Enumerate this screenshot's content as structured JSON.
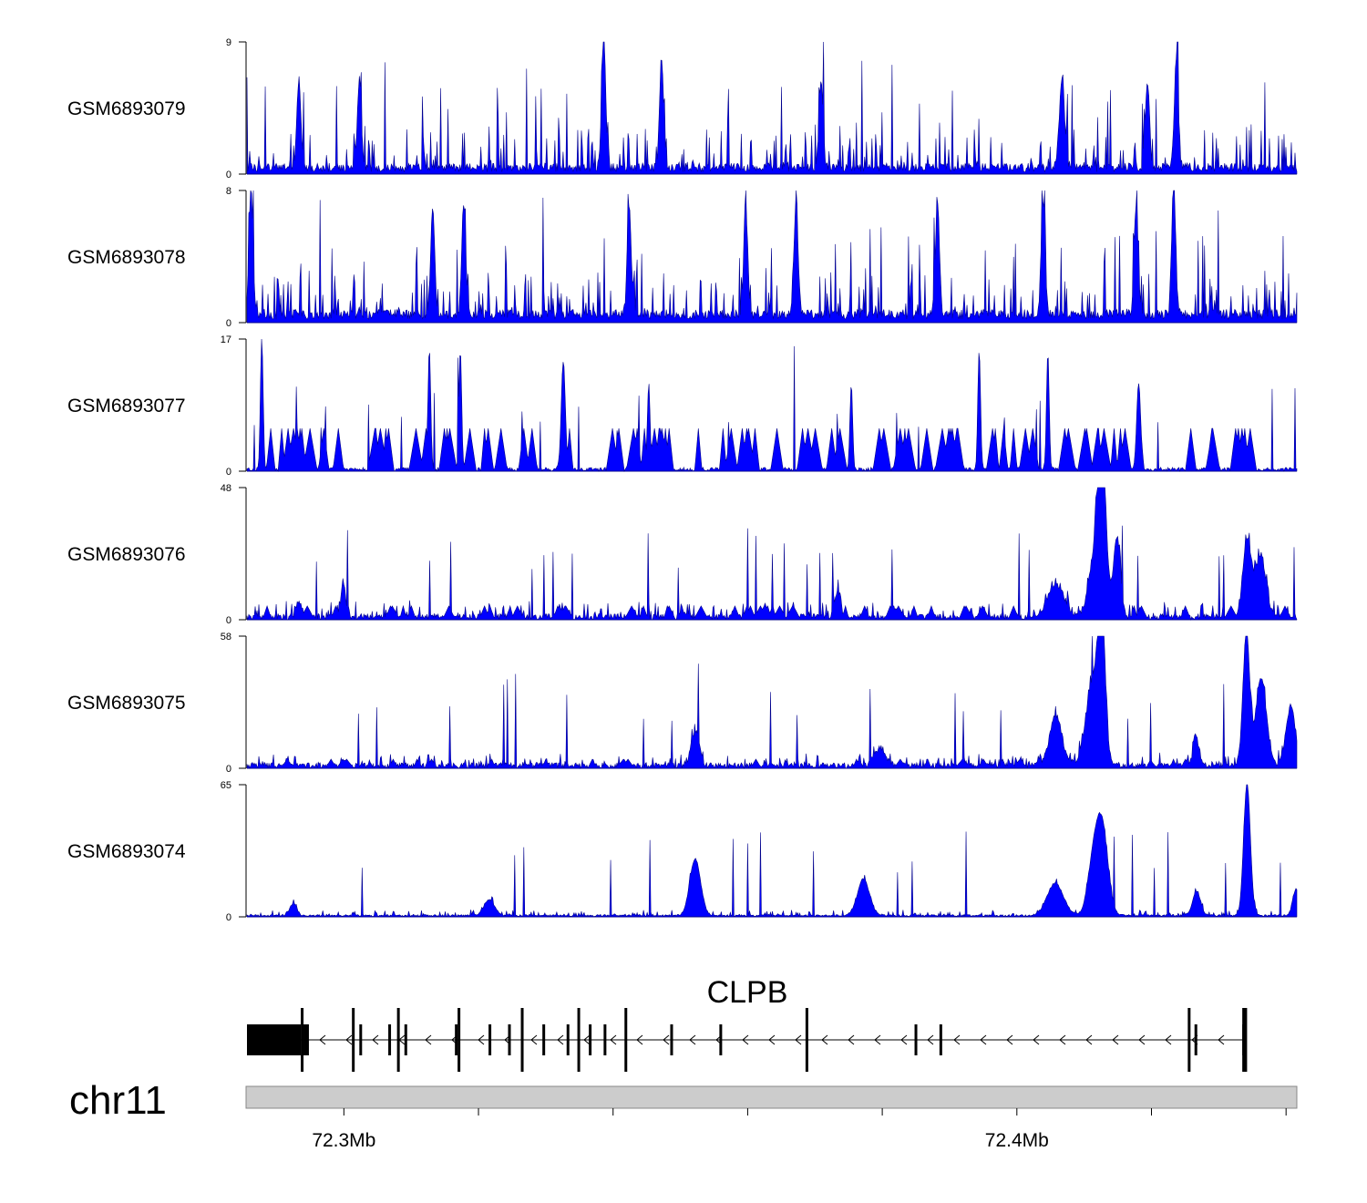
{
  "chart_data": {
    "type": "area",
    "title": "",
    "chromosome": "chr11",
    "region_mb": [
      72.2856,
      72.4416
    ],
    "tracks": [
      {
        "name": "GSM6893079",
        "ymin": "0",
        "ymax": "9",
        "max": 9,
        "base": 0.6,
        "floor": 0.15,
        "noise": 2.6,
        "spikes": 40,
        "triangles": 0,
        "peaks": [
          [
            72.3386,
            9,
            0.0003
          ],
          [
            72.3472,
            7.5,
            0.0003
          ],
          [
            72.4237,
            7.5,
            0.0003
          ],
          [
            72.2933,
            6,
            0.0003
          ],
          [
            72.3023,
            6,
            0.0003
          ],
          [
            72.3709,
            6,
            0.0003
          ],
          [
            72.4067,
            6,
            0.0004
          ],
          [
            72.4194,
            6,
            0.0003
          ]
        ]
      },
      {
        "name": "GSM6893078",
        "ymin": "0",
        "ymax": "8",
        "max": 8,
        "base": 0.6,
        "floor": 0.2,
        "noise": 2.4,
        "spikes": 45,
        "triangles": 0,
        "peaks": [
          [
            72.2862,
            7.5,
            0.0003
          ],
          [
            72.4233,
            8,
            0.0003
          ],
          [
            72.3132,
            6.7,
            0.0003
          ],
          [
            72.3178,
            6.7,
            0.0003
          ],
          [
            72.3672,
            6.7,
            0.0003
          ],
          [
            72.3882,
            6.7,
            0.0003
          ],
          [
            72.4039,
            6.7,
            0.0003
          ],
          [
            72.4177,
            6.6,
            0.0003
          ],
          [
            72.3424,
            6.6,
            0.0003
          ],
          [
            72.3597,
            6.6,
            0.0003
          ]
        ]
      },
      {
        "name": "GSM6893077",
        "ymin": "0",
        "ymax": "17",
        "max": 17,
        "base": 0.5,
        "floor": 0.0,
        "noise": 0,
        "spikes": 25,
        "triangles": 90,
        "triH": 5.5,
        "peaks": [
          [
            72.2878,
            17,
            0.0002
          ],
          [
            72.3127,
            15.5,
            0.0002
          ],
          [
            72.3173,
            15.5,
            0.0002
          ],
          [
            72.3326,
            14,
            0.0003
          ],
          [
            72.3944,
            15.5,
            0.0002
          ],
          [
            72.4046,
            15,
            0.0002
          ],
          [
            72.4181,
            11,
            0.0003
          ],
          [
            72.3754,
            11,
            0.0002
          ],
          [
            72.3453,
            11,
            0.0002
          ]
        ]
      },
      {
        "name": "GSM6893076",
        "ymin": "0",
        "ymax": "48",
        "max": 48,
        "base": 2.2,
        "floor": 0.0,
        "noise": 5,
        "spikes": 25,
        "triangles": 55,
        "triH": 5,
        "peaks": [
          [
            72.4126,
            48,
            0.0005
          ],
          [
            72.4121,
            30,
            0.0011
          ],
          [
            72.4149,
            28,
            0.0005
          ],
          [
            72.4058,
            12,
            0.0012
          ],
          [
            72.4342,
            28,
            0.0006
          ],
          [
            72.4362,
            22,
            0.0008
          ],
          [
            72.2999,
            13,
            0.0003
          ],
          [
            72.2933,
            6,
            0.0004
          ],
          [
            72.3734,
            10,
            0.0004
          ]
        ]
      },
      {
        "name": "GSM6893075",
        "ymin": "0",
        "ymax": "58",
        "max": 58,
        "base": 2.5,
        "floor": 0.0,
        "noise": 5,
        "spikes": 20,
        "triangles": 35,
        "triH": 4,
        "peaks": [
          [
            72.4126,
            58,
            0.0005
          ],
          [
            72.4114,
            38,
            0.0011
          ],
          [
            72.4341,
            58,
            0.0005
          ],
          [
            72.4363,
            38,
            0.0008
          ],
          [
            72.4058,
            22,
            0.0009
          ],
          [
            72.4407,
            26,
            0.0007
          ],
          [
            72.3522,
            15,
            0.0006
          ],
          [
            72.4266,
            14,
            0.0004
          ],
          [
            72.3797,
            8,
            0.0008
          ]
        ]
      },
      {
        "name": "GSM6893074",
        "ymin": "0",
        "ymax": "65",
        "max": 65,
        "base": 0.9,
        "floor": 0.2,
        "noise": 2.5,
        "spikes": 18,
        "triangles": 0,
        "peaks": [
          [
            72.4342,
            65,
            0.0005
          ],
          [
            72.4126,
            45,
            0.0009
          ],
          [
            72.4112,
            20,
            0.0008
          ],
          [
            72.3522,
            28,
            0.0008
          ],
          [
            72.3772,
            18,
            0.0009
          ],
          [
            72.4057,
            16,
            0.0012
          ],
          [
            72.4415,
            13,
            0.0005
          ],
          [
            72.4267,
            12,
            0.0006
          ],
          [
            72.3216,
            8,
            0.0008
          ],
          [
            72.2925,
            6,
            0.0005
          ]
        ]
      }
    ],
    "gene": {
      "name": "CLPB",
      "strand": "-",
      "start_mb": 72.2856,
      "end_mb": 72.4339,
      "cds_end_mb": 72.2936,
      "exons_mb": [
        72.2938,
        72.2942,
        72.2946,
        72.3014,
        72.3025,
        72.3068,
        72.3081,
        72.3092,
        72.3167,
        72.3171,
        72.3217,
        72.3246,
        72.3265,
        72.3297,
        72.3333,
        72.3349,
        72.3366,
        72.3388,
        72.3419,
        72.3487,
        72.356,
        72.3688,
        72.385,
        72.3887,
        72.4256,
        72.4266,
        72.4337,
        72.434
      ]
    },
    "axis": {
      "ticks_mb": [
        72.3,
        72.32,
        72.34,
        72.36,
        72.38,
        72.4,
        72.42,
        72.44
      ],
      "labels": [
        {
          "pos_mb": 72.3,
          "text": "72.3Mb"
        },
        {
          "pos_mb": 72.4,
          "text": "72.4Mb"
        }
      ]
    },
    "fill_color": "#0000ff",
    "line_color": "#00008b"
  }
}
